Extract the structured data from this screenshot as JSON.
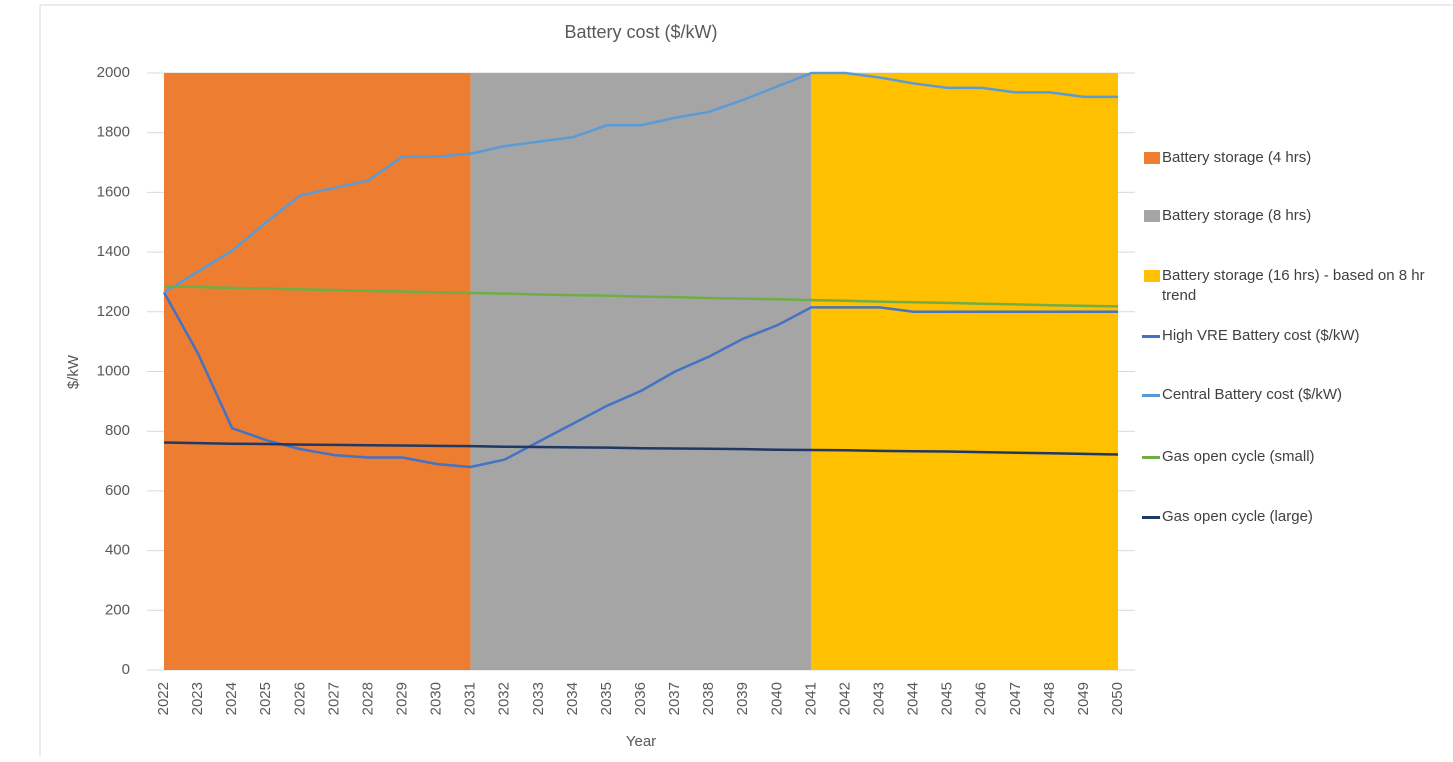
{
  "chart_data": {
    "type": "line",
    "title": "Battery cost ($/kW)",
    "y_label": "$/kW",
    "x_label": "Year",
    "categories": [
      "2022",
      "2023",
      "2024",
      "2025",
      "2026",
      "2027",
      "2028",
      "2029",
      "2030",
      "2031",
      "2032",
      "2033",
      "2034",
      "2035",
      "2036",
      "2037",
      "2038",
      "2039",
      "2040",
      "2041",
      "2042",
      "2043",
      "2044",
      "2045",
      "2046",
      "2047",
      "2048",
      "2049",
      "2050"
    ],
    "ylim": [
      0,
      2000
    ],
    "yticks": [
      0,
      200,
      400,
      600,
      800,
      1000,
      1200,
      1400,
      1600,
      1800,
      2000
    ],
    "grid": true,
    "series": [
      {
        "name": "Battery storage (4 hrs)",
        "type": "area",
        "color": "#ED7D31",
        "values": [
          2000,
          2000,
          2000,
          2000,
          2000,
          2000,
          2000,
          2000,
          2000,
          2000,
          null,
          null,
          null,
          null,
          null,
          null,
          null,
          null,
          null,
          null,
          null,
          null,
          null,
          null,
          null,
          null,
          null,
          null,
          null
        ]
      },
      {
        "name": "Battery storage (8 hrs)",
        "type": "area",
        "color": "#A5A5A5",
        "values": [
          null,
          null,
          null,
          null,
          null,
          null,
          null,
          null,
          null,
          2000,
          2000,
          2000,
          2000,
          2000,
          2000,
          2000,
          2000,
          2000,
          2000,
          2000,
          null,
          null,
          null,
          null,
          null,
          null,
          null,
          null,
          null
        ]
      },
      {
        "name": "Battery storage (16 hrs) - based on 8 hr trend",
        "type": "area",
        "color": "#FFC000",
        "values": [
          null,
          null,
          null,
          null,
          null,
          null,
          null,
          null,
          null,
          null,
          null,
          null,
          null,
          null,
          null,
          null,
          null,
          null,
          null,
          2000,
          2000,
          2000,
          2000,
          2000,
          2000,
          2000,
          2000,
          2000,
          2000
        ]
      },
      {
        "name": "High VRE Battery cost ($/kW)",
        "type": "line",
        "color": "#4472C4",
        "values": [
          1265,
          1060,
          810,
          770,
          740,
          720,
          712,
          712,
          690,
          680,
          705,
          765,
          825,
          885,
          935,
          1000,
          1050,
          1110,
          1155,
          1215,
          1215,
          1215,
          1200,
          1200,
          1200,
          1200,
          1200,
          1200,
          1200
        ]
      },
      {
        "name": "Central Battery cost ($/kW)",
        "type": "line",
        "color": "#5B9BD5",
        "values": [
          1265,
          1335,
          1405,
          1500,
          1590,
          1615,
          1640,
          1720,
          1720,
          1730,
          1755,
          1770,
          1785,
          1825,
          1825,
          1850,
          1870,
          1910,
          1955,
          2000,
          2000,
          1985,
          1965,
          1950,
          1950,
          1935,
          1935,
          1920,
          1920
        ]
      },
      {
        "name": "Gas open cycle (small)",
        "type": "line",
        "color": "#70AD47",
        "values": [
          1285,
          1283,
          1280,
          1278,
          1275,
          1273,
          1270,
          1268,
          1265,
          1263,
          1261,
          1258,
          1256,
          1254,
          1251,
          1249,
          1246,
          1244,
          1242,
          1239,
          1237,
          1234,
          1232,
          1230,
          1227,
          1225,
          1222,
          1220,
          1218
        ]
      },
      {
        "name": "Gas open cycle (large)",
        "type": "line",
        "color": "#203864",
        "values": [
          762,
          760,
          758,
          757,
          755,
          754,
          753,
          752,
          751,
          750,
          748,
          747,
          746,
          745,
          743,
          742,
          741,
          740,
          738,
          737,
          736,
          734,
          733,
          732,
          730,
          728,
          726,
          724,
          722
        ]
      }
    ]
  }
}
